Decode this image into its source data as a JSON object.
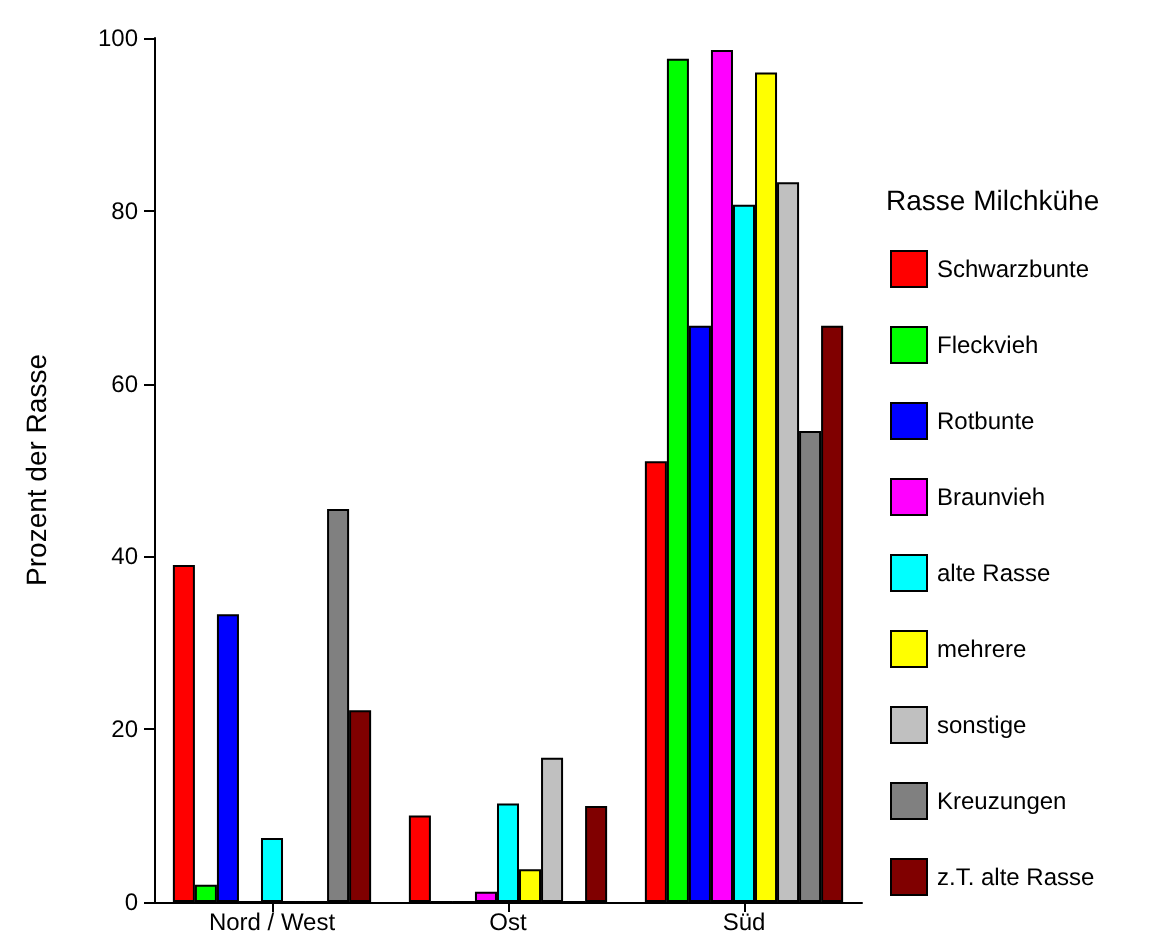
{
  "chart_data": {
    "type": "bar",
    "ylabel": "Prozent der Rasse",
    "legend_title": "Rasse Milchkühe",
    "categories": [
      "Nord / West",
      "Ost",
      "Süd"
    ],
    "series": [
      {
        "name": "Schwarzbunte",
        "color": "#ff0000",
        "values": [
          39,
          10,
          51
        ]
      },
      {
        "name": "Fleckvieh",
        "color": "#00ff00",
        "values": [
          2,
          0,
          97.6
        ]
      },
      {
        "name": "Rotbunte",
        "color": "#0000ff",
        "values": [
          33.3,
          0,
          66.7
        ]
      },
      {
        "name": "Braunvieh",
        "color": "#ff00ff",
        "values": [
          0,
          1.2,
          98.6
        ]
      },
      {
        "name": "alte Rasse",
        "color": "#00ffff",
        "values": [
          7.4,
          11.4,
          80.7
        ]
      },
      {
        "name": "mehrere",
        "color": "#ffff00",
        "values": [
          0,
          3.8,
          96
        ]
      },
      {
        "name": "sonstige",
        "color": "#c0c0c0",
        "values": [
          0,
          16.7,
          83.3
        ]
      },
      {
        "name": "Kreuzungen",
        "color": "#808080",
        "values": [
          45.5,
          0,
          54.5
        ]
      },
      {
        "name": "z.T. alte Rasse",
        "color": "#800000",
        "values": [
          22.2,
          11.1,
          66.7
        ]
      }
    ],
    "ylim": [
      0,
      100
    ],
    "yticks": [
      0,
      20,
      40,
      60,
      80,
      100
    ],
    "grid": false,
    "legend": "right"
  }
}
